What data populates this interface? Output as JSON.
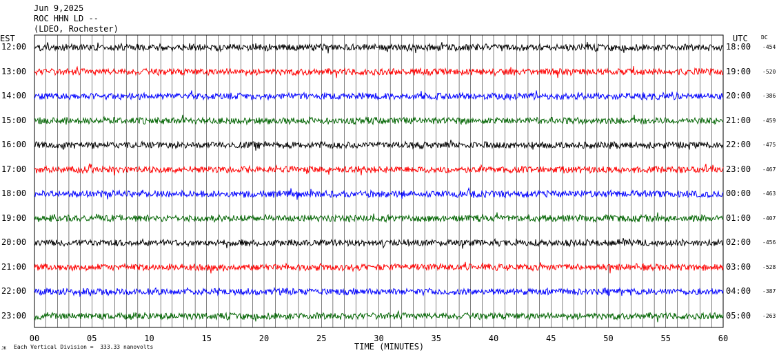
{
  "header": {
    "date": "Jun 9,2025",
    "station": "ROC HHN LD --",
    "network": "(LDEO, Rochester)"
  },
  "left_axis_title": "EST",
  "right_axis_title": "UTC",
  "dc_title": "DC",
  "footer": {
    "xlabel": "TIME (MINUTES)",
    "scale_note": "Each Vertical Division =  333.33 nanovolts",
    "corner_mark": "JK"
  },
  "chart_data": {
    "type": "line",
    "subtype": "helicorder",
    "xlabel": "TIME (MINUTES)",
    "xlim": [
      0,
      60
    ],
    "x_ticks": [
      "00",
      "05",
      "10",
      "15",
      "20",
      "25",
      "30",
      "35",
      "40",
      "45",
      "50",
      "55",
      "60"
    ],
    "grid": "vertical lines every minute",
    "series_colors": [
      "#000000",
      "#ff0000",
      "#0000ff",
      "#006400"
    ],
    "rows": [
      {
        "est": "12:00",
        "utc": "18:00",
        "dc": "-454"
      },
      {
        "est": "13:00",
        "utc": "19:00",
        "dc": "-520"
      },
      {
        "est": "14:00",
        "utc": "20:00",
        "dc": "-386"
      },
      {
        "est": "15:00",
        "utc": "21:00",
        "dc": "-459"
      },
      {
        "est": "16:00",
        "utc": "22:00",
        "dc": "-475"
      },
      {
        "est": "17:00",
        "utc": "23:00",
        "dc": "-467"
      },
      {
        "est": "18:00",
        "utc": "00:00",
        "dc": "-463"
      },
      {
        "est": "19:00",
        "utc": "01:00",
        "dc": "-407"
      },
      {
        "est": "20:00",
        "utc": "02:00",
        "dc": "-456"
      },
      {
        "est": "21:00",
        "utc": "03:00",
        "dc": "-528"
      },
      {
        "est": "22:00",
        "utc": "04:00",
        "dc": "-387"
      },
      {
        "est": "23:00",
        "utc": "05:00",
        "dc": "-263"
      }
    ]
  }
}
